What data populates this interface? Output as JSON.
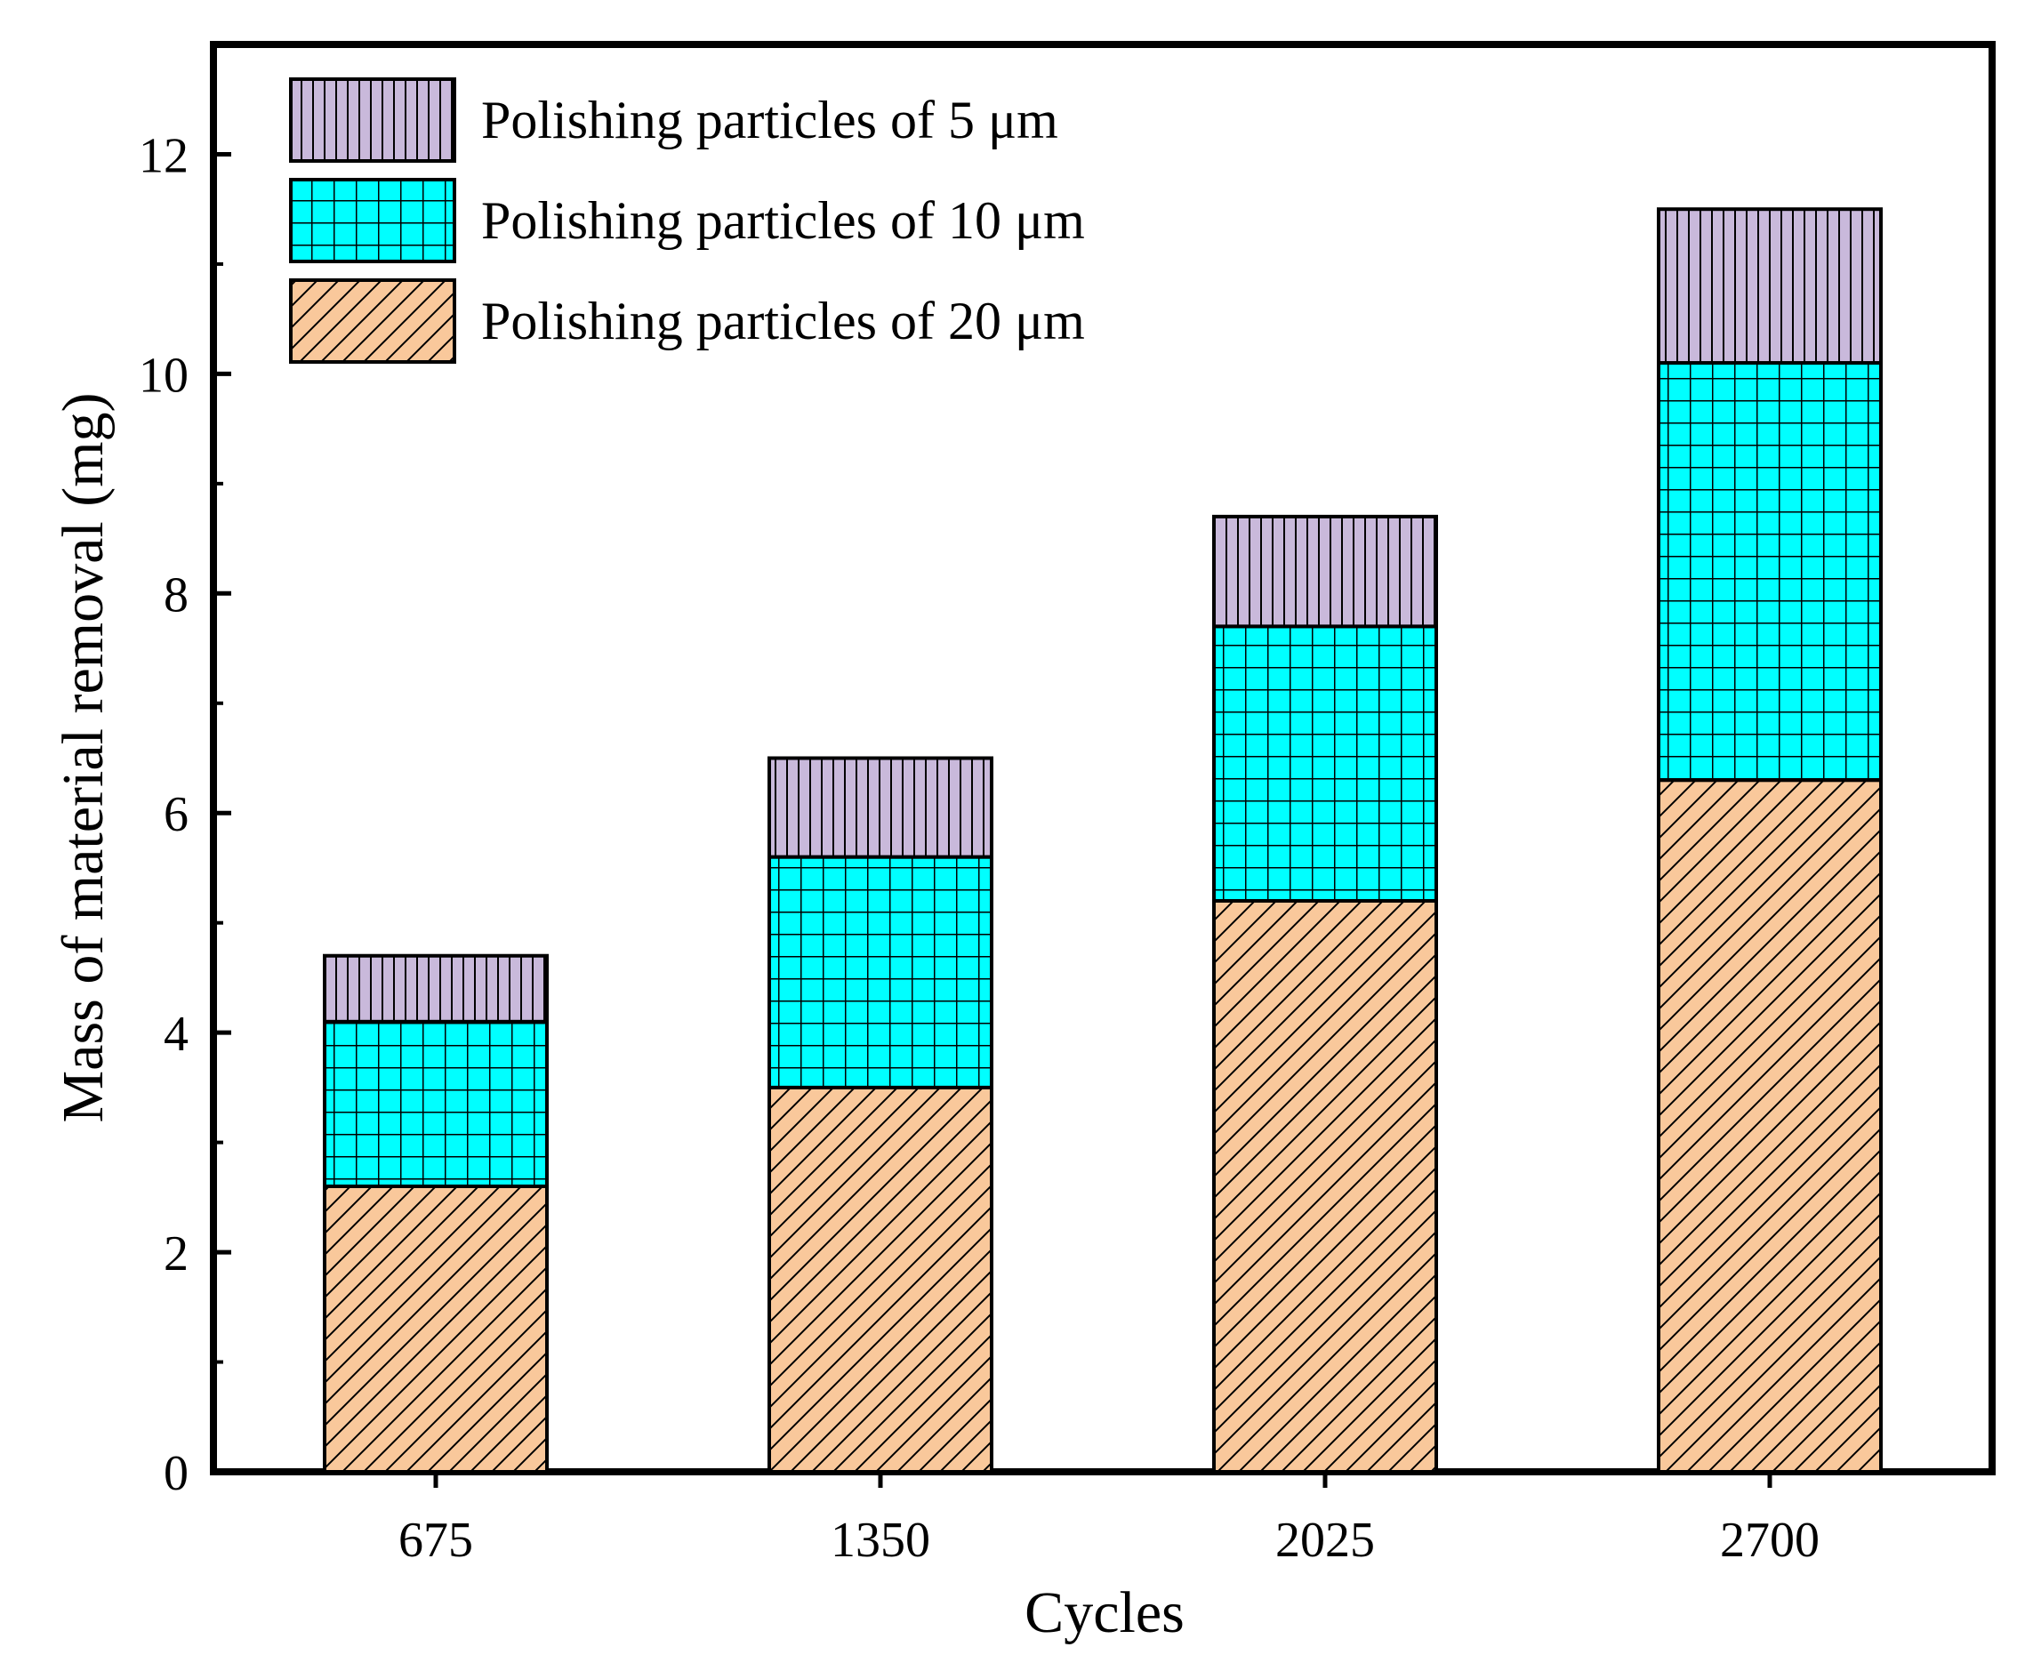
{
  "chart_data": {
    "type": "bar",
    "stacked": true,
    "title": "",
    "xlabel": "Cycles",
    "ylabel": "Mass of material removal (mg)",
    "ylim": [
      0,
      13
    ],
    "yticks": [
      0,
      2,
      4,
      6,
      8,
      10,
      12
    ],
    "categories": [
      "675",
      "1350",
      "2025",
      "2700"
    ],
    "series": [
      {
        "name": "Polishing particles of 20 μm",
        "values": [
          2.6,
          3.5,
          5.2,
          6.3
        ],
        "color": "#F9C89B",
        "pattern": "diagonal-hatch"
      },
      {
        "name": "Polishing particles of 10 μm",
        "values": [
          1.5,
          2.1,
          2.5,
          3.8
        ],
        "color": "#00FFFF",
        "pattern": "grid"
      },
      {
        "name": "Polishing particles of 5 μm",
        "values": [
          0.6,
          0.9,
          1.0,
          1.4
        ],
        "color": "#C9B9DB",
        "pattern": "vertical-lines"
      }
    ],
    "legend_order": [
      2,
      1,
      0
    ],
    "legend_position": "top-left",
    "grid": false
  }
}
